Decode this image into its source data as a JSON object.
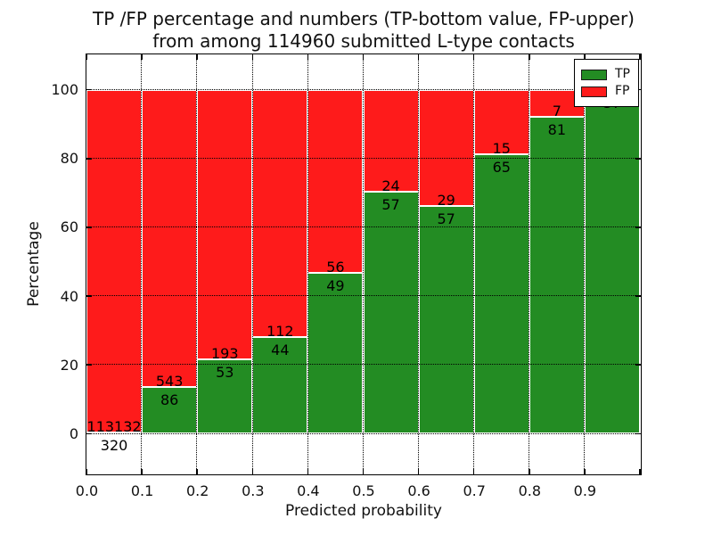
{
  "title": {
    "line1": "TP /FP percentage and numbers (TP-bottom value, FP-upper)",
    "line2": "from among 114960 submitted L-type contacts"
  },
  "axes": {
    "xlabel": "Predicted probability",
    "ylabel": "Percentage",
    "xtick_labels": [
      "0.0",
      "0.1",
      "0.2",
      "0.3",
      "0.4",
      "0.5",
      "0.6",
      "0.7",
      "0.8",
      "0.9"
    ],
    "ytick_labels": [
      "0",
      "20",
      "40",
      "60",
      "80",
      "100"
    ]
  },
  "legend": {
    "items": [
      {
        "label": "TP",
        "color": "#238c23"
      },
      {
        "label": "FP",
        "color": "#fe1b1b"
      }
    ]
  },
  "colors": {
    "tp_green": "#238c23",
    "fp_red": "#fe1b1b",
    "grid": "#000000",
    "background": "#ffffff",
    "bar_edge": "#ffffff"
  },
  "chart_data": {
    "type": "bar",
    "subtype": "stacked-normalized-100-percent",
    "title": "TP /FP percentage and numbers (TP-bottom value, FP-upper) from among 114960 submitted L-type contacts",
    "xlabel": "Predicted probability",
    "ylabel": "Percentage",
    "xlim": [
      0.0,
      1.0
    ],
    "ylim": [
      -11.6,
      110.3
    ],
    "grid": "dotted-black",
    "legend_position": "upper right",
    "total_contacts": 114960,
    "bin_width": 0.1,
    "bin_edges": [
      0.0,
      0.1,
      0.2,
      0.3,
      0.4,
      0.5,
      0.6,
      0.7,
      0.8,
      0.9,
      1.0
    ],
    "categories": [
      "0.0-0.1",
      "0.1-0.2",
      "0.2-0.3",
      "0.3-0.4",
      "0.4-0.5",
      "0.5-0.6",
      "0.6-0.7",
      "0.7-0.8",
      "0.8-0.9",
      "0.9-1.0"
    ],
    "series": [
      {
        "name": "TP",
        "color": "#238c23",
        "counts": [
          320,
          86,
          53,
          44,
          49,
          57,
          57,
          65,
          81,
          37
        ]
      },
      {
        "name": "FP",
        "color": "#fe1b1b",
        "counts": [
          113132,
          543,
          193,
          112,
          56,
          24,
          29,
          15,
          7,
          0
        ]
      }
    ],
    "tp_percent_heights": [
      0.28,
      13.67,
      21.54,
      28.21,
      46.67,
      70.37,
      66.28,
      81.25,
      92.05,
      100.0
    ]
  }
}
